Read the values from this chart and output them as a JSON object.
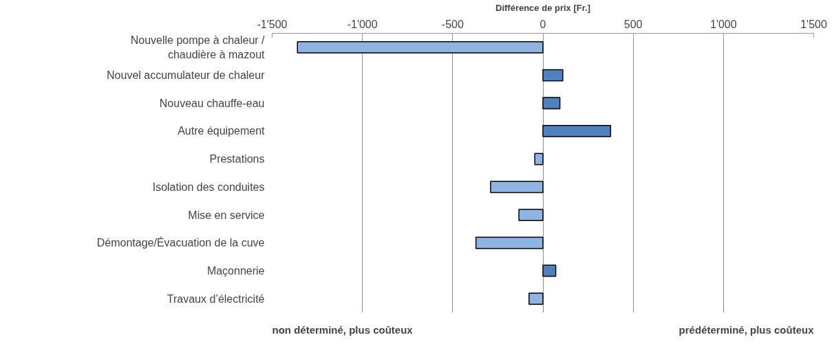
{
  "chart_data": {
    "type": "bar",
    "orientation": "horizontal",
    "xlabel": "Différence de prix [Fr.]",
    "categories": [
      "Nouvelle pompe à chaleur /\nchaudière à mazout",
      "Nouvel accumulateur de chaleur",
      "Nouveau chauffe-eau",
      "Autre équipement",
      "Prestations",
      "Isolation des conduites",
      "Mise en service",
      "Démontage/Évacuation de la cuve",
      "Maçonnerie",
      "Travaux d’électricité"
    ],
    "values": [
      -1360,
      110,
      94,
      375,
      -45,
      -290,
      -133,
      -371,
      71,
      -77
    ],
    "colors": [
      "#8eb4e3",
      "#4f81bd",
      "#4f81bd",
      "#4f81bd",
      "#8eb4e3",
      "#8eb4e3",
      "#8eb4e3",
      "#8eb4e3",
      "#4f81bd",
      "#8eb4e3"
    ],
    "xlim": [
      -1500,
      1500
    ],
    "xticks": [
      {
        "value": -1500,
        "label": "-1'500"
      },
      {
        "value": -1000,
        "label": "-1'000"
      },
      -500,
      0,
      500,
      {
        "value": 1000,
        "label": "1'000"
      },
      {
        "value": 1500,
        "label": "1'500"
      }
    ],
    "grid": "x",
    "annotations": [
      "non déterminé, plus coûteux",
      "prédéterminé, plus coûteux"
    ]
  }
}
